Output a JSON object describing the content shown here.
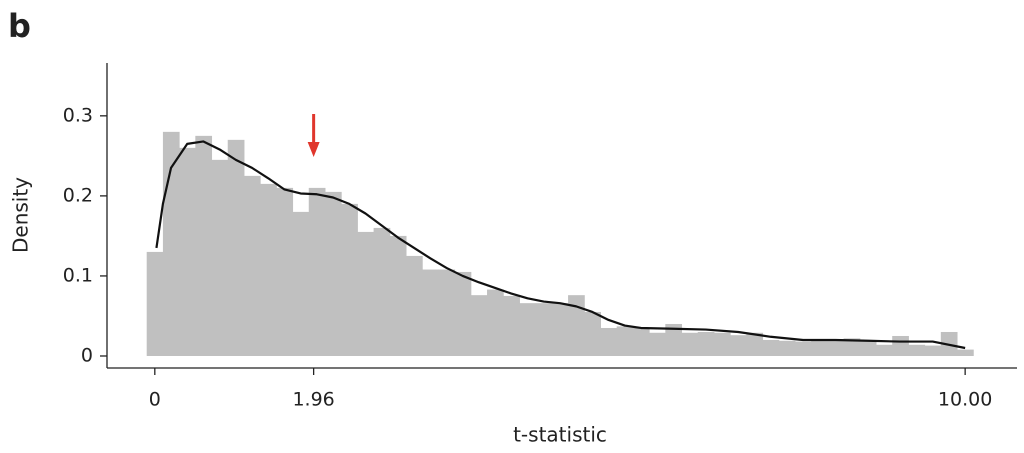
{
  "chart_data": {
    "type": "histogram",
    "panel_label": "b",
    "x_label": "t-statistic",
    "y_label": "Density",
    "color": "#c0c0c0",
    "bins": [
      -0.1,
      0.1,
      0.3,
      0.5,
      0.7,
      0.9,
      1.1,
      1.3,
      1.5,
      1.7,
      1.9,
      2.1,
      2.3,
      2.5,
      2.7,
      2.9,
      3.1,
      3.3,
      3.5,
      3.7,
      3.9,
      4.1,
      4.3,
      4.5,
      4.7,
      4.9,
      5.1,
      5.3,
      5.5,
      5.7,
      5.9,
      6.1,
      6.3,
      6.5,
      6.7,
      6.9,
      7.1,
      7.3,
      7.5,
      7.7,
      7.9,
      8.1,
      8.3,
      8.5,
      8.7,
      8.9,
      9.1,
      9.3,
      9.5,
      9.7,
      9.9,
      10.1
    ],
    "values": [
      0.13,
      0.28,
      0.26,
      0.275,
      0.245,
      0.27,
      0.225,
      0.215,
      0.21,
      0.18,
      0.21,
      0.205,
      0.19,
      0.155,
      0.16,
      0.15,
      0.125,
      0.108,
      0.108,
      0.105,
      0.076,
      0.083,
      0.075,
      0.066,
      0.066,
      0.066,
      0.076,
      0.055,
      0.035,
      0.037,
      0.035,
      0.029,
      0.04,
      0.029,
      0.03,
      0.029,
      0.026,
      0.029,
      0.02,
      0.019,
      0.018,
      0.019,
      0.019,
      0.022,
      0.019,
      0.014,
      0.025,
      0.014,
      0.013,
      0.03,
      0.008
    ],
    "density": {
      "color": "#111111",
      "x": [
        0.02,
        0.1,
        0.2,
        0.4,
        0.6,
        0.8,
        1.0,
        1.2,
        1.4,
        1.6,
        1.8,
        2.0,
        2.2,
        2.4,
        2.6,
        2.8,
        3.0,
        3.2,
        3.4,
        3.6,
        3.8,
        4.0,
        4.2,
        4.4,
        4.6,
        4.8,
        5.0,
        5.2,
        5.4,
        5.6,
        5.8,
        6.0,
        6.4,
        6.8,
        7.2,
        7.6,
        8.0,
        8.4,
        8.8,
        9.2,
        9.6,
        10.0
      ],
      "values": [
        0.135,
        0.19,
        0.235,
        0.265,
        0.268,
        0.258,
        0.245,
        0.235,
        0.222,
        0.208,
        0.203,
        0.202,
        0.198,
        0.19,
        0.178,
        0.163,
        0.148,
        0.135,
        0.122,
        0.11,
        0.1,
        0.092,
        0.085,
        0.078,
        0.072,
        0.068,
        0.066,
        0.062,
        0.055,
        0.045,
        0.038,
        0.035,
        0.034,
        0.033,
        0.03,
        0.024,
        0.02,
        0.02,
        0.019,
        0.018,
        0.018,
        0.01
      ]
    },
    "arrow": {
      "x": 1.96,
      "color": "#e0362c"
    },
    "xlim": [
      -0.59,
      10.64
    ],
    "ylim": [
      -0.015,
      0.366
    ],
    "xticks": [
      0,
      1.96,
      {
        "value": 10,
        "label": "10.00"
      }
    ],
    "yticks": [
      0,
      0.1,
      0.2,
      0.3
    ]
  }
}
